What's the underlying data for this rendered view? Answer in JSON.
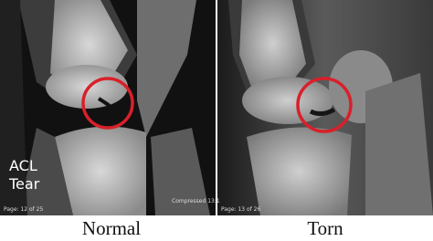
{
  "left_panel": {
    "overlay_text": [
      "ACL",
      "Tear"
    ],
    "footer": "Page: 12 of 25",
    "compression": "Compressed 13:1",
    "label": "Normal"
  },
  "right_panel": {
    "footer": "Page: 13 of 26",
    "label": "Torn"
  }
}
